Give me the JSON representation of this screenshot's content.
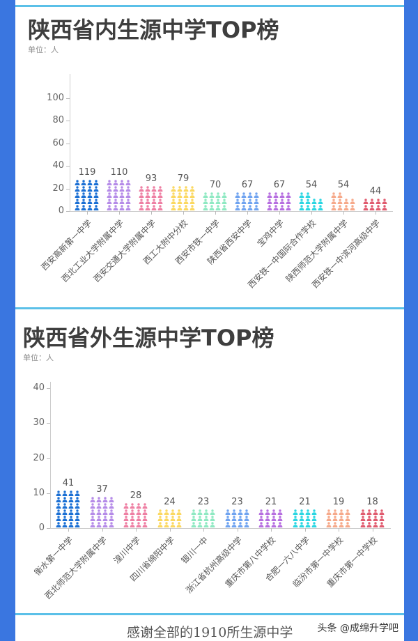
{
  "section1": {
    "title": "陕西省内生源中学TOP榜",
    "unit": "单位：人"
  },
  "section2": {
    "title": "陕西省外生源中学TOP榜",
    "unit": "单位：人"
  },
  "footer": {
    "text": "感谢全部的1910所生源中学",
    "watermark": "头条 @成绵升学吧"
  },
  "colors": {
    "background": "#3a76e0",
    "separator": "#5bc0e8",
    "panel": "#ffffff",
    "palette": [
      "#1a6fd4",
      "#b58be8",
      "#ee7fa3",
      "#fbd860",
      "#8ee9c2",
      "#6fa3f0",
      "#b66ee0",
      "#2ad6e2",
      "#f6a98a",
      "#e05a6e"
    ]
  },
  "chart_data": [
    {
      "type": "bar",
      "style": "pictogram",
      "title": "陕西省内生源中学TOP榜",
      "ylabel": "单位：人",
      "xlabel": "",
      "ylim": [
        0,
        119
      ],
      "yticks": [
        0,
        20,
        40,
        60,
        80,
        100
      ],
      "grid": false,
      "categories": [
        "西安高新第一中学",
        "西北工业大学附属中学",
        "西安交通大学附属中学",
        "西工大附中分校",
        "西安市铁一中学",
        "陕西省西安中学",
        "宝鸡中学",
        "西安铁一中国际合作学校",
        "陕西师范大学附属中学",
        "西安铁一中滨河高级中学"
      ],
      "values": [
        119,
        110,
        93,
        79,
        70,
        67,
        67,
        54,
        54,
        44
      ]
    },
    {
      "type": "bar",
      "style": "pictogram",
      "title": "陕西省外生源中学TOP榜",
      "ylabel": "单位：人",
      "xlabel": "",
      "ylim": [
        0,
        41
      ],
      "yticks": [
        0,
        10,
        20,
        30,
        40
      ],
      "grid": false,
      "categories": [
        "衡水第一中学",
        "西北师范大学附属中学",
        "湟川中学",
        "四川省绵阳中学",
        "银川一中",
        "浙江省杭州高级中学",
        "重庆市第八中学校",
        "合肥一六八中学",
        "临汾市第一中学校",
        "重庆市第一中学校"
      ],
      "values": [
        41,
        37,
        28,
        24,
        23,
        23,
        21,
        21,
        19,
        18
      ]
    }
  ]
}
